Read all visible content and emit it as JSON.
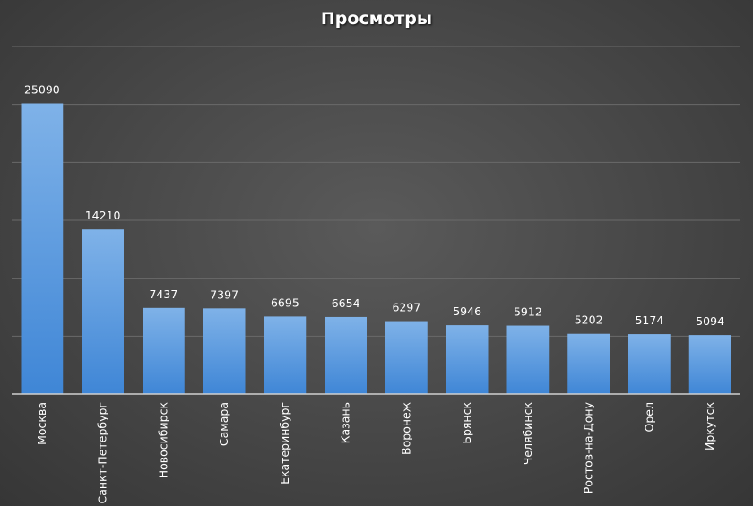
{
  "chart_data": {
    "type": "bar",
    "title": "Просмотры",
    "categories": [
      "Москва",
      "Санкт-Петербург",
      "Новосибирск",
      "Самара",
      "Екатеринбург",
      "Казань",
      "Воронеж",
      "Брянск",
      "Челябинск",
      "Ростов-на-Дону",
      "Орел",
      "Иркутск"
    ],
    "values": [
      25090,
      14210,
      7437,
      7397,
      6695,
      6654,
      6297,
      5946,
      5912,
      5202,
      5174,
      5094
    ],
    "ylim": [
      0,
      30000
    ],
    "grid": true,
    "legend": "none",
    "colors": {
      "bar_top": "#7fb2e8",
      "bar_bottom": "#3f86d6"
    }
  }
}
